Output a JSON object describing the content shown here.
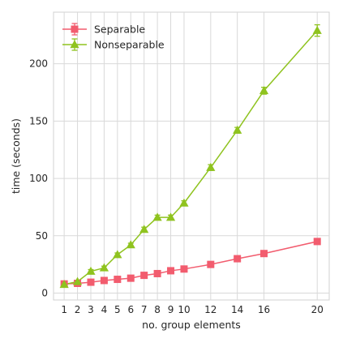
{
  "chart_data": {
    "type": "line",
    "title": "",
    "xlabel": "no. group elements",
    "ylabel": "time (seconds)",
    "x": [
      1,
      2,
      3,
      4,
      5,
      6,
      7,
      8,
      9,
      10,
      12,
      14,
      16,
      20
    ],
    "x_ticks": [
      1,
      2,
      3,
      4,
      5,
      6,
      7,
      8,
      9,
      10,
      12,
      14,
      16,
      20
    ],
    "y_ticks": [
      0,
      50,
      100,
      150,
      200
    ],
    "xlim": [
      0.2,
      20.9
    ],
    "ylim": [
      -6,
      245
    ],
    "grid": true,
    "legend_position": "top-left",
    "series": [
      {
        "name": "Separable",
        "color": "#f25c6e",
        "marker": "square",
        "values": [
          8,
          8.5,
          9.5,
          11,
          12,
          13,
          15.5,
          17,
          19.5,
          21,
          25,
          30,
          34.5,
          45
        ],
        "errors": [
          1,
          1,
          1,
          1,
          1,
          1,
          1,
          1,
          1,
          1,
          1,
          1.5,
          1.5,
          2
        ]
      },
      {
        "name": "Nonseparable",
        "color": "#8fc31f",
        "marker": "triangle",
        "values": [
          7.5,
          10,
          19,
          22,
          33.5,
          42,
          55.5,
          66,
          66,
          78.5,
          109.5,
          142,
          176.5,
          229
        ],
        "errors": [
          1,
          1,
          1.5,
          1.5,
          1.5,
          1.5,
          2,
          2,
          2,
          2,
          2.5,
          2.5,
          3,
          5
        ]
      }
    ]
  }
}
